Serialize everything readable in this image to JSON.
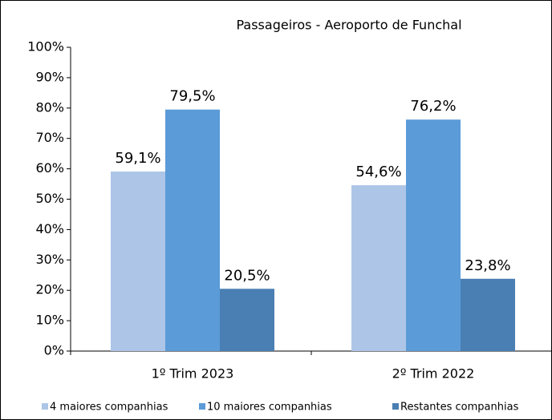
{
  "chart_data": {
    "type": "bar",
    "title": "Passageiros - Aeroporto de Funchal",
    "categories": [
      "1º Trim 2023",
      "2º Trim 2022"
    ],
    "series": [
      {
        "name": "4 maiores companhias",
        "color": "#adc6e7",
        "values": [
          59.1,
          54.6
        ],
        "value_labels": [
          "59,1%",
          "54,6%"
        ]
      },
      {
        "name": "10 maiores companhias",
        "color": "#5b9bd8",
        "values": [
          79.5,
          76.2
        ],
        "value_labels": [
          "79,5%",
          "76,2%"
        ]
      },
      {
        "name": "Restantes companhias",
        "color": "#4a7fb3",
        "values": [
          20.5,
          23.8
        ],
        "value_labels": [
          "20,5%",
          "23,8%"
        ]
      }
    ],
    "ylim": [
      0,
      100
    ],
    "yticks": [
      {
        "value": 0,
        "label": "0%"
      },
      {
        "value": 10,
        "label": "10%"
      },
      {
        "value": 20,
        "label": "20%"
      },
      {
        "value": 30,
        "label": "30%"
      },
      {
        "value": 40,
        "label": "40%"
      },
      {
        "value": 50,
        "label": "50%"
      },
      {
        "value": 60,
        "label": "60%"
      },
      {
        "value": 70,
        "label": "70%"
      },
      {
        "value": 80,
        "label": "80%"
      },
      {
        "value": 90,
        "label": "90%"
      },
      {
        "value": 100,
        "label": "100%"
      }
    ],
    "grid": false,
    "legend": "bottom"
  }
}
